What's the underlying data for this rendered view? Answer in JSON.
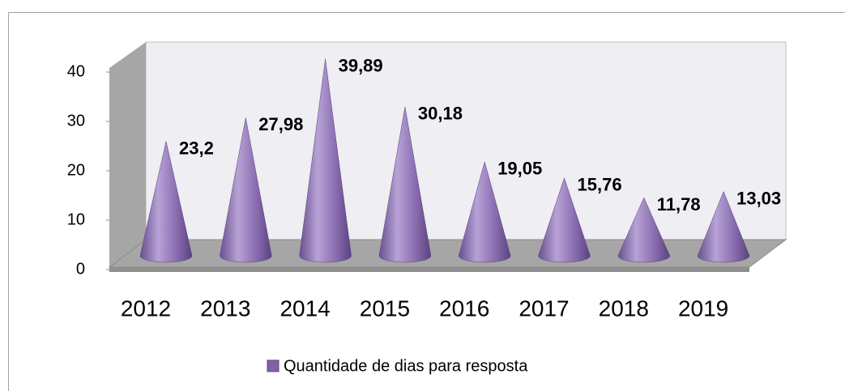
{
  "chart_data": {
    "type": "cone",
    "categories": [
      "2012",
      "2013",
      "2014",
      "2015",
      "2016",
      "2017",
      "2018",
      "2019"
    ],
    "series": [
      {
        "name": "Quantidade de dias para resposta",
        "color": "#8064a2",
        "values": [
          23.2,
          27.98,
          39.89,
          30.18,
          19.05,
          15.76,
          11.78,
          13.03
        ],
        "value_labels": [
          "23,2",
          "27,98",
          "39,89",
          "30,18",
          "19,05",
          "15,76",
          "11,78",
          "13,03"
        ]
      }
    ],
    "ylim": [
      0,
      40
    ],
    "yticks": [
      0,
      10,
      20,
      30,
      40
    ]
  }
}
